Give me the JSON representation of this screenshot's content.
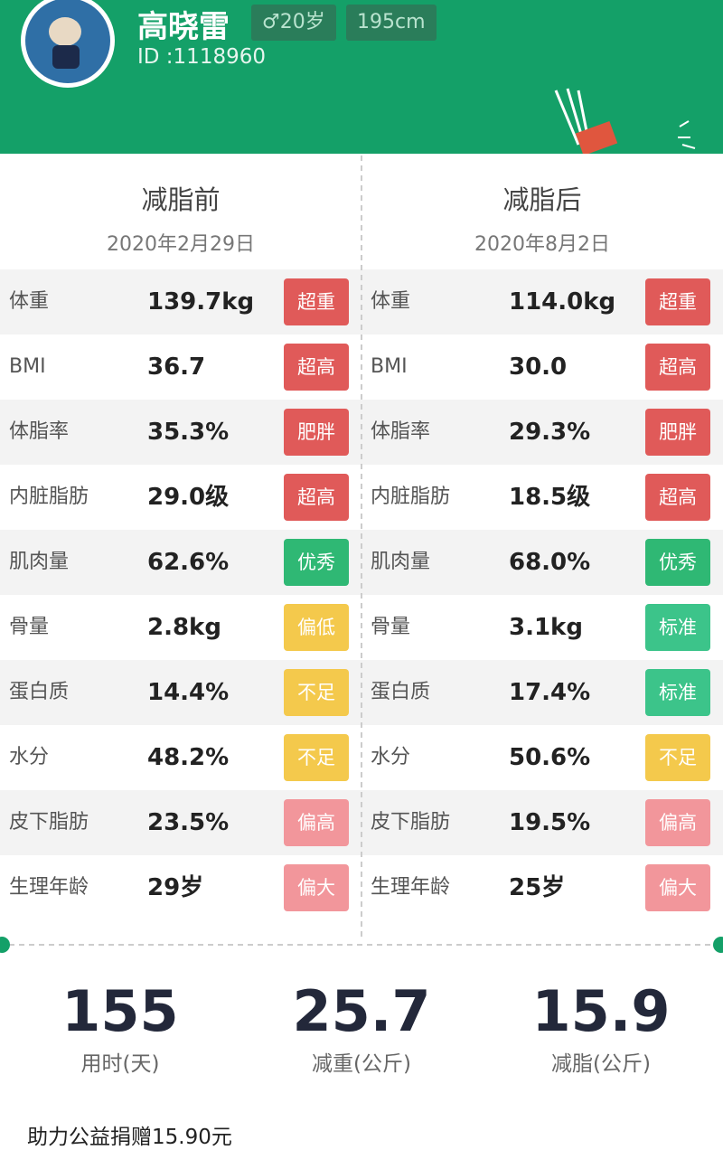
{
  "header": {
    "name": "高晓雷",
    "gender_age": "♂20岁",
    "height": "195cm",
    "id": "ID :1118960"
  },
  "columns": [
    {
      "title": "减脂前",
      "date": "2020年2月29日",
      "rows": [
        {
          "label": "体重",
          "value": "139.7kg",
          "tag": "超重",
          "tag_color": "#e05a59"
        },
        {
          "label": "BMI",
          "value": "36.7",
          "tag": "超高",
          "tag_color": "#e05a59"
        },
        {
          "label": "体脂率",
          "value": "35.3%",
          "tag": "肥胖",
          "tag_color": "#e05a59"
        },
        {
          "label": "内脏脂肪",
          "value": "29.0级",
          "tag": "超高",
          "tag_color": "#e05a59"
        },
        {
          "label": "肌肉量",
          "value": "62.6%",
          "tag": "优秀",
          "tag_color": "#2fb874"
        },
        {
          "label": "骨量",
          "value": "2.8kg",
          "tag": "偏低",
          "tag_color": "#f4c94c"
        },
        {
          "label": "蛋白质",
          "value": "14.4%",
          "tag": "不足",
          "tag_color": "#f4c94c"
        },
        {
          "label": "水分",
          "value": "48.2%",
          "tag": "不足",
          "tag_color": "#f4c94c"
        },
        {
          "label": "皮下脂肪",
          "value": "23.5%",
          "tag": "偏高",
          "tag_color": "#f2969b"
        },
        {
          "label": "生理年龄",
          "value": "29岁",
          "tag": "偏大",
          "tag_color": "#f2969b"
        }
      ]
    },
    {
      "title": "减脂后",
      "date": "2020年8月2日",
      "rows": [
        {
          "label": "体重",
          "value": "114.0kg",
          "tag": "超重",
          "tag_color": "#e05a59"
        },
        {
          "label": "BMI",
          "value": "30.0",
          "tag": "超高",
          "tag_color": "#e05a59"
        },
        {
          "label": "体脂率",
          "value": "29.3%",
          "tag": "肥胖",
          "tag_color": "#e05a59"
        },
        {
          "label": "内脏脂肪",
          "value": "18.5级",
          "tag": "超高",
          "tag_color": "#e05a59"
        },
        {
          "label": "肌肉量",
          "value": "68.0%",
          "tag": "优秀",
          "tag_color": "#2fb874"
        },
        {
          "label": "骨量",
          "value": "3.1kg",
          "tag": "标准",
          "tag_color": "#3cc48a"
        },
        {
          "label": "蛋白质",
          "value": "17.4%",
          "tag": "标准",
          "tag_color": "#3cc48a"
        },
        {
          "label": "水分",
          "value": "50.6%",
          "tag": "不足",
          "tag_color": "#f4c94c"
        },
        {
          "label": "皮下脂肪",
          "value": "19.5%",
          "tag": "偏高",
          "tag_color": "#f2969b"
        },
        {
          "label": "生理年龄",
          "value": "25岁",
          "tag": "偏大",
          "tag_color": "#f2969b"
        }
      ]
    }
  ],
  "summary": [
    {
      "value": "155",
      "label": "用时(天)"
    },
    {
      "value": "25.7",
      "label": "减重(公斤)"
    },
    {
      "value": "15.9",
      "label": "减脂(公斤)"
    }
  ],
  "footer": "助力公益捐赠15.90元"
}
